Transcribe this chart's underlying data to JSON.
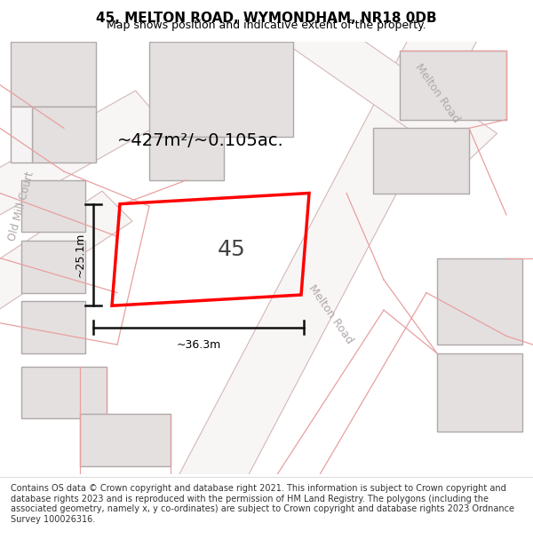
{
  "title": "45, MELTON ROAD, WYMONDHAM, NR18 0DB",
  "subtitle": "Map shows position and indicative extent of the property.",
  "footer": "Contains OS data © Crown copyright and database right 2021. This information is subject to Crown copyright and database rights 2023 and is reproduced with the permission of HM Land Registry. The polygons (including the associated geometry, namely x, y co-ordinates) are subject to Crown copyright and database rights 2023 Ordnance Survey 100026316.",
  "area_label": "~427m²/~0.105ac.",
  "number_label": "45",
  "dim_width": "~36.3m",
  "dim_height": "~25.1m",
  "road_label_1": "Melton Road",
  "road_label_2": "Melton Road",
  "road_label_3": "Old Mill Court",
  "bg_color": "#f0eeee",
  "map_bg": "#f5f3f3",
  "plot_color": "#ff0000",
  "building_fill": "#e0dddd",
  "building_edge": "#aaaaaa",
  "road_fill": "#ffffff",
  "road_edge": "#cccccc",
  "dim_line_color": "#111111",
  "text_color": "#333333",
  "road_label_color": "#aaaaaa"
}
